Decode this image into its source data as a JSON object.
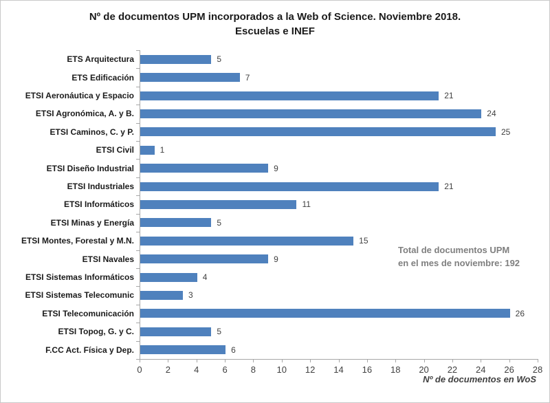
{
  "chart_data": {
    "type": "bar",
    "orientation": "horizontal",
    "title_line1": "Nº de documentos UPM incorporados a la Web of Science. Noviembre 2018.",
    "title_line2": "Escuelas e INEF",
    "categories": [
      "ETS Arquitectura",
      "ETS Edificación",
      "ETSI Aeronáutica y Espacio",
      "ETSI Agronómica, A. y B.",
      "ETSI Caminos, C. y P.",
      "ETSI Civil",
      "ETSI Diseño Industrial",
      "ETSI Industriales",
      "ETSI Informáticos",
      "ETSI Minas y Energía",
      "ETSI Montes, Forestal y M.N.",
      "ETSI Navales",
      "ETSI Sistemas Informáticos",
      "ETSI Sistemas Telecomunic",
      "ETSI Telecomunicación",
      "ETSI Topog, G. y C.",
      "F.CC Act. Física y Dep."
    ],
    "values": [
      5,
      7,
      21,
      24,
      25,
      1,
      9,
      21,
      11,
      5,
      15,
      9,
      4,
      3,
      26,
      5,
      6
    ],
    "xlabel": "Nº de documentos en WoS",
    "ylabel": "",
    "xlim": [
      0,
      28
    ],
    "x_ticks": [
      0,
      2,
      4,
      6,
      8,
      10,
      12,
      14,
      16,
      18,
      20,
      22,
      24,
      26,
      28
    ],
    "grid": false,
    "legend": "none",
    "annotation": {
      "line1": "Total de documentos UPM",
      "line2": "en el mes de noviembre: 192"
    },
    "colors": {
      "bar": "#4f81bd",
      "axis": "#a6a6a6",
      "tick_label": "#404040",
      "value_label": "#404040",
      "category_label": "#1a1a1a",
      "title": "#1a1a1a",
      "annotation": "#7f7f7f",
      "frame_border": "#c9c9c9"
    }
  }
}
